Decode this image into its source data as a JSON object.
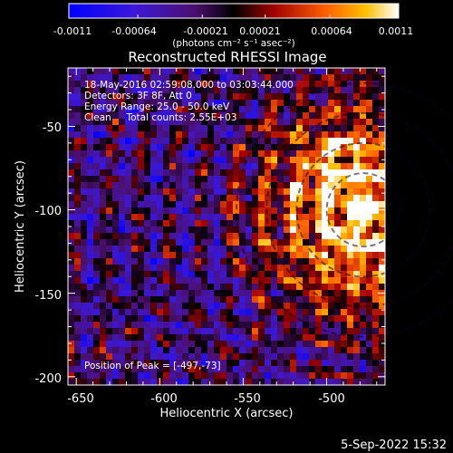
{
  "colorbar": {
    "ticks": [
      "-0.0011",
      "-0.00064",
      "-0.00021",
      "0.00021",
      "0.00064",
      "0.0011"
    ],
    "units": "(photons cm⁻² s⁻¹ asec⁻²)",
    "range": [
      -0.0011,
      0.0011
    ]
  },
  "chart_data": {
    "type": "heatmap",
    "title": "Reconstructed RHESSI Image",
    "xlabel": "Heliocentric X (arcsec)",
    "ylabel": "Heliocentric Y (arcsec)",
    "xlim": [
      -655,
      -465
    ],
    "ylim": [
      -205,
      -15
    ],
    "x_ticks": [
      -650,
      -600,
      -550,
      -500
    ],
    "y_ticks": [
      -50,
      -100,
      -150,
      -200
    ],
    "annotations": [
      "18-May-2016 02:59:08.000 to 03:03:44.000",
      "Detectors: 3F 8F, Att 0",
      "Energy Range: 25.0 - 50.0 keV",
      "Clean     Total counts: 2.55E+03"
    ],
    "peak_label": "Position of Peak = [-497,-73]",
    "peak": [
      -497,
      -73
    ],
    "source_center": [
      -478,
      -100
    ]
  },
  "footer": {
    "timestamp": "5-Sep-2022 15:32"
  }
}
